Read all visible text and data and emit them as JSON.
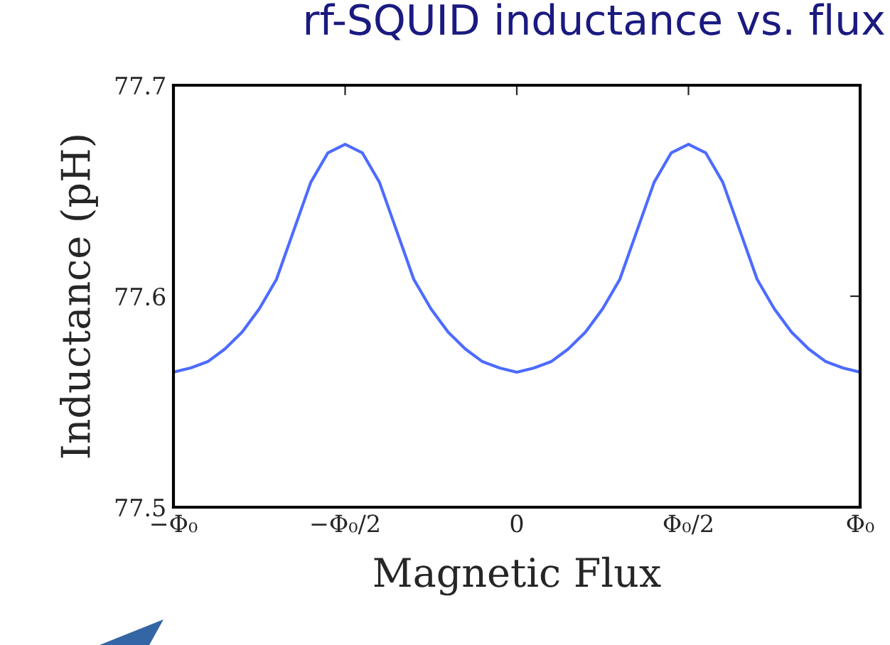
{
  "chart_data": {
    "type": "line",
    "title": "rf-SQUID inductance vs. flux",
    "xlabel": "Magnetic Flux",
    "ylabel": "Inductance (pH)",
    "categories": [
      "−Φ₀",
      null,
      null,
      null,
      null,
      null,
      null,
      null,
      null,
      null,
      "−Φ₀/2",
      null,
      null,
      null,
      null,
      null,
      null,
      null,
      null,
      null,
      "0",
      null,
      null,
      null,
      null,
      null,
      null,
      null,
      null,
      null,
      "Φ₀/2",
      null,
      null,
      null,
      null,
      null,
      null,
      null,
      null,
      null,
      "Φ₀"
    ],
    "series": [
      {
        "color": "#4d6bff",
        "values": [
          77.564,
          77.566,
          77.569,
          77.575,
          77.583,
          77.594,
          77.608,
          77.631,
          77.654,
          77.668,
          77.672,
          77.668,
          77.654,
          77.631,
          77.608,
          77.594,
          77.583,
          77.575,
          77.569,
          77.566,
          77.564,
          77.566,
          77.569,
          77.575,
          77.583,
          77.594,
          77.608,
          77.631,
          77.654,
          77.668,
          77.672,
          77.668,
          77.654,
          77.631,
          77.608,
          77.594,
          77.583,
          77.575,
          77.569,
          77.566,
          77.564
        ]
      }
    ],
    "ylim": [
      77.5,
      77.7
    ],
    "yticks": [
      77.5,
      77.6,
      77.7
    ],
    "grid": false,
    "marker": "none",
    "line_style": "solid"
  }
}
